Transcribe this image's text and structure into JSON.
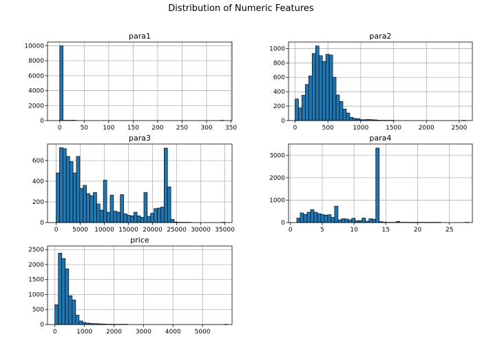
{
  "figure": {
    "title": "Distribution of Numeric Features"
  },
  "colors": {
    "bar_fill": "#1f77b4",
    "bar_edge": "#000000",
    "grid": "#b0b0b0",
    "axis": "#000000"
  },
  "chart_data": [
    {
      "type": "bar",
      "title": "para1",
      "xlim": [
        -25,
        352
      ],
      "ylim": [
        0,
        10500
      ],
      "x_ticks": [
        0,
        50,
        100,
        150,
        200,
        250,
        300,
        350
      ],
      "y_ticks": [
        0,
        2000,
        4000,
        6000,
        8000,
        10000
      ],
      "grid": true,
      "bin_start": 0,
      "bin_width": 6.7,
      "values": [
        9990,
        5,
        2,
        1,
        1,
        0,
        0,
        0,
        0,
        0,
        0,
        0,
        0,
        0,
        0,
        0,
        0,
        0,
        0,
        0,
        0,
        0,
        0,
        0,
        0,
        0,
        0,
        0,
        0,
        0,
        0,
        0,
        0,
        0,
        0,
        0,
        0,
        0,
        0,
        0,
        0,
        0,
        0,
        0,
        0,
        0,
        0,
        0,
        0,
        1
      ]
    },
    {
      "type": "bar",
      "title": "para2",
      "xlim": [
        -100,
        2700
      ],
      "ylim": [
        0,
        1090
      ],
      "x_ticks": [
        0,
        500,
        1000,
        1500,
        2000,
        2500
      ],
      "y_ticks": [
        0,
        200,
        400,
        600,
        800,
        1000
      ],
      "grid": true,
      "bin_start": 0,
      "bin_width": 52,
      "values": [
        300,
        175,
        350,
        500,
        620,
        930,
        1035,
        900,
        820,
        920,
        910,
        600,
        355,
        265,
        160,
        105,
        45,
        30,
        25,
        12,
        12,
        15,
        12,
        10,
        5,
        3,
        2,
        1,
        1,
        0,
        0,
        0,
        0,
        0,
        0,
        0,
        0,
        0,
        0,
        0,
        0,
        0,
        0,
        0,
        0,
        0,
        0,
        0,
        0,
        1
      ]
    },
    {
      "type": "bar",
      "title": "para3",
      "xlim": [
        -1800,
        36500
      ],
      "ylim": [
        0,
        760
      ],
      "x_ticks": [
        0,
        5000,
        10000,
        15000,
        20000,
        25000,
        30000,
        35000
      ],
      "y_ticks": [
        0,
        200,
        400,
        600
      ],
      "grid": true,
      "bin_start": 0,
      "bin_width": 700,
      "values": [
        480,
        725,
        715,
        640,
        590,
        480,
        640,
        330,
        360,
        280,
        260,
        290,
        180,
        120,
        410,
        100,
        265,
        110,
        100,
        270,
        85,
        70,
        65,
        100,
        65,
        50,
        290,
        60,
        90,
        135,
        140,
        150,
        720,
        345,
        30,
        5,
        3,
        2,
        1,
        1,
        0,
        0,
        0,
        0,
        0,
        0,
        0,
        0,
        0,
        1
      ]
    },
    {
      "type": "bar",
      "title": "para4",
      "xlim": [
        -0.3,
        28.6
      ],
      "ylim": [
        0,
        3500
      ],
      "x_ticks": [
        0,
        5,
        10,
        15,
        20,
        25
      ],
      "y_ticks": [
        0,
        1000,
        2000,
        3000
      ],
      "grid": true,
      "bin_start": 1,
      "bin_width": 0.54,
      "values": [
        200,
        430,
        360,
        460,
        580,
        460,
        400,
        360,
        330,
        350,
        230,
        730,
        120,
        170,
        160,
        120,
        190,
        80,
        90,
        200,
        60,
        170,
        150,
        3320,
        40,
        20,
        10,
        5,
        2,
        50,
        3,
        2,
        1,
        1,
        1,
        1,
        1,
        1,
        1,
        1,
        1,
        1,
        0,
        0,
        0,
        0,
        0,
        0,
        0,
        1
      ]
    },
    {
      "type": "bar",
      "title": "price",
      "xlim": [
        -250,
        6000
      ],
      "ylim": [
        0,
        2620
      ],
      "x_ticks": [
        0,
        1000,
        2000,
        3000,
        4000,
        5000
      ],
      "y_ticks": [
        0,
        500,
        1000,
        1500,
        2000,
        2500
      ],
      "grid": true,
      "bin_start": 0,
      "bin_width": 117,
      "values": [
        660,
        2380,
        2200,
        1860,
        960,
        820,
        310,
        120,
        70,
        50,
        35,
        30,
        25,
        20,
        15,
        5,
        3,
        2,
        1,
        1,
        1,
        0,
        0,
        0,
        0,
        0,
        0,
        0,
        0,
        0,
        0,
        0,
        0,
        0,
        0,
        0,
        0,
        0,
        0,
        0,
        0,
        0,
        0,
        0,
        0,
        0,
        0,
        0,
        0,
        1
      ]
    }
  ]
}
